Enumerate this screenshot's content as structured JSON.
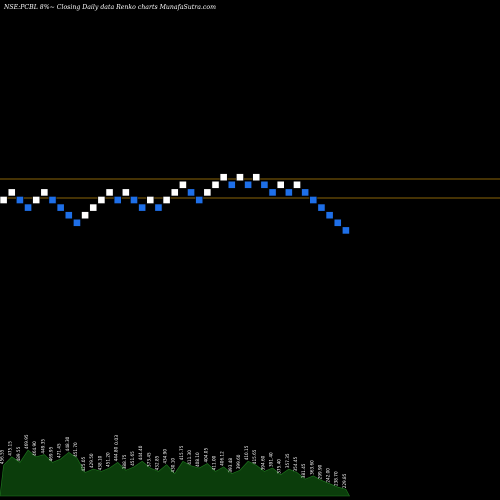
{
  "chart_data": {
    "type": "renko",
    "title": "NSE:PCBL  8%~  Closing Daily data  Renko  charts MunafaSutra.com",
    "colors": {
      "background": "#000000",
      "up_brick": "#ffffff",
      "down_brick": "#1e6fe8",
      "reference_line": "#b8860b",
      "volume_fill": "#0b3d0b",
      "volume_edge": "#1f7a1f",
      "label_text": "#ffffff"
    },
    "reference_levels": [
      "upper",
      "lower"
    ],
    "bricks": [
      {
        "dir": "up",
        "row": 1
      },
      {
        "dir": "up",
        "row": 2
      },
      {
        "dir": "down",
        "row": 1
      },
      {
        "dir": "down",
        "row": 0
      },
      {
        "dir": "up",
        "row": 1
      },
      {
        "dir": "up",
        "row": 2
      },
      {
        "dir": "down",
        "row": 1
      },
      {
        "dir": "down",
        "row": 0
      },
      {
        "dir": "down",
        "row": -1
      },
      {
        "dir": "down",
        "row": -2
      },
      {
        "dir": "up",
        "row": -1
      },
      {
        "dir": "up",
        "row": 0
      },
      {
        "dir": "up",
        "row": 1
      },
      {
        "dir": "up",
        "row": 2
      },
      {
        "dir": "down",
        "row": 1
      },
      {
        "dir": "up",
        "row": 2
      },
      {
        "dir": "down",
        "row": 1
      },
      {
        "dir": "down",
        "row": 0
      },
      {
        "dir": "up",
        "row": 1
      },
      {
        "dir": "down",
        "row": 0
      },
      {
        "dir": "up",
        "row": 1
      },
      {
        "dir": "up",
        "row": 2
      },
      {
        "dir": "up",
        "row": 3
      },
      {
        "dir": "down",
        "row": 2
      },
      {
        "dir": "down",
        "row": 1
      },
      {
        "dir": "up",
        "row": 2
      },
      {
        "dir": "up",
        "row": 3
      },
      {
        "dir": "up",
        "row": 4
      },
      {
        "dir": "down",
        "row": 3
      },
      {
        "dir": "up",
        "row": 4
      },
      {
        "dir": "down",
        "row": 3
      },
      {
        "dir": "up",
        "row": 4
      },
      {
        "dir": "down",
        "row": 3
      },
      {
        "dir": "down",
        "row": 2
      },
      {
        "dir": "up",
        "row": 3
      },
      {
        "dir": "down",
        "row": 2
      },
      {
        "dir": "up",
        "row": 3
      },
      {
        "dir": "down",
        "row": 2
      },
      {
        "dir": "down",
        "row": 1
      },
      {
        "dir": "down",
        "row": 0
      },
      {
        "dir": "down",
        "row": -1
      },
      {
        "dir": "down",
        "row": -2
      },
      {
        "dir": "down",
        "row": -3
      }
    ],
    "volume": [
      0.55,
      0.7,
      0.6,
      0.82,
      0.7,
      0.74,
      0.6,
      0.66,
      0.78,
      0.68,
      0.42,
      0.48,
      0.44,
      0.5,
      0.6,
      0.46,
      0.52,
      0.62,
      0.5,
      0.44,
      0.56,
      0.4,
      0.62,
      0.54,
      0.5,
      0.58,
      0.44,
      0.52,
      0.4,
      0.46,
      0.62,
      0.55,
      0.44,
      0.5,
      0.38,
      0.48,
      0.42,
      0.3,
      0.36,
      0.28,
      0.22,
      0.16,
      0.12
    ],
    "price_labels": [
      "456.55",
      "475.15",
      "489.55",
      "469.95",
      "464.90",
      "449.35",
      "469.95",
      "471.45",
      "448.30",
      "451.70",
      "425.05",
      "429.50",
      "438.10",
      "451.20",
      "444.80",
      "388.75",
      "451.65",
      "444.40",
      "373.45",
      "432.85",
      "434.90",
      "430.10",
      "415.75",
      "411.30",
      "408.10",
      "404.05",
      "411.00",
      "406.12",
      "393.48",
      "399.60",
      "410.15",
      "415.65",
      "394.60",
      "391.40",
      "375.40",
      "357.35",
      "354.45",
      "381.45",
      "363.60",
      "299.90",
      "242.00",
      "238.70",
      "229.85"
    ],
    "standalone_label": "0.03"
  }
}
